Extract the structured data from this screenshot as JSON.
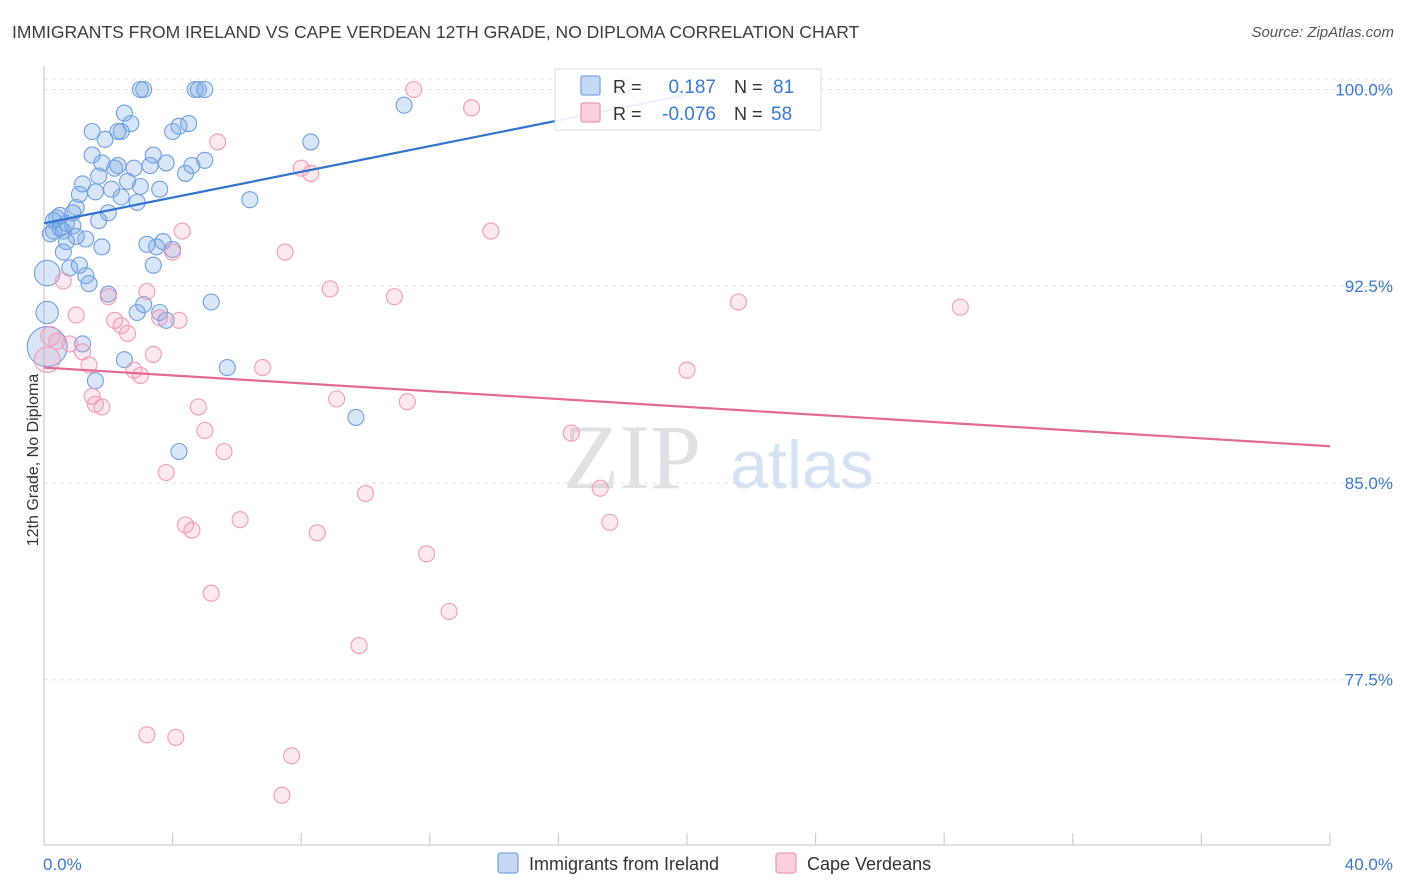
{
  "chart_data": {
    "type": "scatter",
    "title": "IMMIGRANTS FROM IRELAND VS CAPE VERDEAN 12TH GRADE, NO DIPLOMA CORRELATION CHART",
    "source": "Source: ZipAtlas.com",
    "watermark": {
      "zip": "ZIP",
      "atlas": "atlas"
    },
    "xlabel": "",
    "ylabel": "12th Grade, No Diploma",
    "xlim": [
      0,
      40
    ],
    "ylim": [
      71.2,
      101.2
    ],
    "x_tick_labels": {
      "left": "0.0%",
      "right": "40.0%"
    },
    "y_ticks": [
      {
        "value": 100.0,
        "label": "100.0%"
      },
      {
        "value": 92.5,
        "label": "92.5%"
      },
      {
        "value": 85.0,
        "label": "85.0%"
      },
      {
        "value": 77.5,
        "label": "77.5%"
      }
    ],
    "grid": "horizontal dashed",
    "legend_position": "bottom-center",
    "stats_box_position": "top-center",
    "series": [
      {
        "name": "Immigrants from Ireland",
        "color": "#6fa0e0",
        "line_color": "#2f72d0",
        "R": "0.187",
        "N": "81",
        "trend": {
          "x0": 0.0,
          "y0": 94.9,
          "x1": 20.0,
          "y1": 99.8
        },
        "points": [
          [
            0.1,
            93.0,
            1.6
          ],
          [
            0.1,
            91.5,
            1.4
          ],
          [
            0.1,
            90.2,
            2.5
          ],
          [
            0.2,
            94.5,
            1
          ],
          [
            0.3,
            95.0,
            1
          ],
          [
            0.3,
            94.6,
            1
          ],
          [
            0.4,
            95.1,
            1
          ],
          [
            0.5,
            94.7,
            1
          ],
          [
            0.6,
            93.8,
            1
          ],
          [
            0.7,
            94.2,
            1
          ],
          [
            0.8,
            93.2,
            1
          ],
          [
            0.9,
            94.8,
            1
          ],
          [
            1.0,
            95.5,
            1
          ],
          [
            1.1,
            96.0,
            1
          ],
          [
            1.2,
            96.4,
            1
          ],
          [
            1.3,
            94.3,
            1
          ],
          [
            1.4,
            92.6,
            1
          ],
          [
            1.5,
            97.5,
            1
          ],
          [
            1.6,
            96.1,
            1
          ],
          [
            1.7,
            95.0,
            1
          ],
          [
            1.8,
            97.2,
            1
          ],
          [
            1.9,
            98.1,
            1
          ],
          [
            2.0,
            95.3,
            1
          ],
          [
            2.1,
            96.2,
            1
          ],
          [
            2.2,
            97.0,
            1
          ],
          [
            2.3,
            98.4,
            1
          ],
          [
            2.4,
            95.9,
            1
          ],
          [
            2.5,
            99.1,
            1
          ],
          [
            2.6,
            96.5,
            1
          ],
          [
            2.7,
            98.7,
            1
          ],
          [
            2.8,
            97.0,
            1
          ],
          [
            2.9,
            95.7,
            1
          ],
          [
            3.0,
            96.3,
            1
          ],
          [
            3.1,
            100.0,
            1
          ],
          [
            3.2,
            94.1,
            1
          ],
          [
            3.3,
            97.1,
            1
          ],
          [
            3.4,
            97.5,
            1
          ],
          [
            3.5,
            94.0,
            1
          ],
          [
            3.6,
            96.2,
            1
          ],
          [
            3.7,
            94.2,
            1
          ],
          [
            3.8,
            97.2,
            1
          ],
          [
            4.0,
            98.4,
            1
          ],
          [
            4.2,
            98.6,
            1
          ],
          [
            4.4,
            96.8,
            1
          ],
          [
            4.6,
            97.1,
            1
          ],
          [
            4.7,
            100.0,
            1
          ],
          [
            4.8,
            100.0,
            1
          ],
          [
            5.0,
            100.0,
            1
          ],
          [
            5.2,
            91.9,
            1
          ],
          [
            5.7,
            89.4,
            1
          ],
          [
            6.4,
            95.8,
            1
          ],
          [
            8.3,
            98.0,
            1
          ],
          [
            9.7,
            87.5,
            1
          ],
          [
            11.2,
            99.4,
            1
          ],
          [
            18.0,
            100.1,
            1
          ],
          [
            0.5,
            95.2,
            1
          ],
          [
            0.6,
            94.6,
            1
          ],
          [
            0.9,
            95.3,
            1
          ],
          [
            1.0,
            94.4,
            1
          ],
          [
            1.1,
            93.3,
            1
          ],
          [
            1.2,
            90.3,
            1
          ],
          [
            1.3,
            92.9,
            1
          ],
          [
            1.5,
            98.4,
            1
          ],
          [
            2.0,
            92.2,
            1
          ],
          [
            2.4,
            98.4,
            1
          ],
          [
            2.9,
            91.5,
            1
          ],
          [
            3.1,
            91.8,
            1
          ],
          [
            3.4,
            93.3,
            1
          ],
          [
            3.6,
            91.5,
            1
          ],
          [
            4.2,
            86.2,
            1
          ],
          [
            1.6,
            88.9,
            1
          ],
          [
            1.7,
            96.7,
            1
          ],
          [
            2.3,
            97.1,
            1
          ],
          [
            3.0,
            100.0,
            1
          ],
          [
            4.0,
            93.9,
            1
          ],
          [
            4.5,
            98.7,
            1
          ],
          [
            5.0,
            97.3,
            1
          ],
          [
            3.8,
            91.2,
            1
          ],
          [
            2.5,
            89.7,
            1
          ],
          [
            1.8,
            94.0,
            1
          ],
          [
            0.7,
            94.9,
            1
          ]
        ]
      },
      {
        "name": "Cape Verdeans",
        "color": "#f29ab6",
        "line_color": "#e46a92",
        "R": "-0.076",
        "N": "58",
        "trend": {
          "x0": 0.0,
          "y0": 89.4,
          "x1": 40.0,
          "y1": 86.4
        },
        "points": [
          [
            0.1,
            89.7,
            1.6
          ],
          [
            0.2,
            90.6,
            1.2
          ],
          [
            0.4,
            90.4,
            1
          ],
          [
            0.6,
            92.7,
            1
          ],
          [
            0.8,
            90.3,
            1
          ],
          [
            1.0,
            91.4,
            1
          ],
          [
            1.2,
            90.0,
            1
          ],
          [
            1.4,
            89.5,
            1
          ],
          [
            1.5,
            88.3,
            1
          ],
          [
            1.6,
            88.0,
            1
          ],
          [
            1.8,
            87.9,
            1
          ],
          [
            2.0,
            92.1,
            1
          ],
          [
            2.2,
            91.2,
            1
          ],
          [
            2.4,
            91.0,
            1
          ],
          [
            2.6,
            90.7,
            1
          ],
          [
            2.8,
            89.3,
            1
          ],
          [
            3.0,
            89.1,
            1
          ],
          [
            3.2,
            92.3,
            1
          ],
          [
            3.4,
            89.9,
            1
          ],
          [
            3.6,
            91.3,
            1
          ],
          [
            3.8,
            85.4,
            1
          ],
          [
            4.0,
            93.8,
            1
          ],
          [
            4.2,
            91.2,
            1
          ],
          [
            4.4,
            83.4,
            1
          ],
          [
            4.6,
            83.2,
            1
          ],
          [
            4.8,
            87.9,
            1
          ],
          [
            5.0,
            87.0,
            1
          ],
          [
            5.2,
            80.8,
            1
          ],
          [
            5.4,
            98.0,
            1
          ],
          [
            5.6,
            86.2,
            1
          ],
          [
            6.1,
            83.6,
            1
          ],
          [
            6.8,
            89.4,
            1
          ],
          [
            7.5,
            93.8,
            1
          ],
          [
            7.7,
            74.6,
            1
          ],
          [
            8.0,
            97.0,
            1
          ],
          [
            8.3,
            96.8,
            1
          ],
          [
            8.5,
            83.1,
            1
          ],
          [
            8.9,
            92.4,
            1
          ],
          [
            9.1,
            88.2,
            1
          ],
          [
            9.8,
            78.8,
            1
          ],
          [
            10.0,
            84.6,
            1
          ],
          [
            10.9,
            92.1,
            1
          ],
          [
            11.3,
            88.1,
            1
          ],
          [
            11.5,
            100.0,
            1
          ],
          [
            11.9,
            82.3,
            1
          ],
          [
            12.6,
            80.1,
            1
          ],
          [
            13.3,
            99.3,
            1
          ],
          [
            13.9,
            94.6,
            1
          ],
          [
            16.4,
            86.9,
            1
          ],
          [
            17.3,
            84.8,
            1
          ],
          [
            17.6,
            83.5,
            1
          ],
          [
            20.0,
            89.3,
            1
          ],
          [
            21.6,
            91.9,
            1
          ],
          [
            28.5,
            91.7,
            1
          ],
          [
            3.2,
            75.4,
            1
          ],
          [
            4.1,
            75.3,
            1
          ],
          [
            7.4,
            73.1,
            1
          ],
          [
            4.3,
            94.6,
            1
          ]
        ]
      }
    ]
  }
}
